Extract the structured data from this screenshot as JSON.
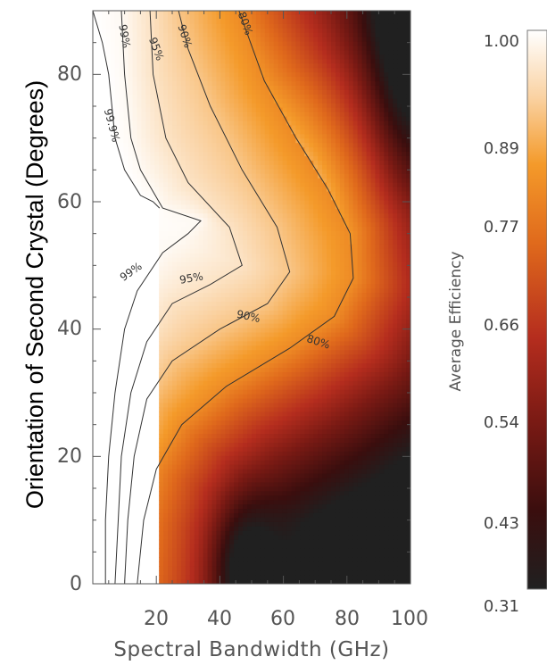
{
  "chart_data": {
    "type": "heatmap",
    "xlabel": "Spectral Bandwidth (GHz)",
    "ylabel": "Orientation of Second Crystal (Degrees)",
    "colorbar_label": "Average Efficiency",
    "xlim": [
      0,
      100
    ],
    "ylim": [
      0,
      90
    ],
    "x_ticks": [
      "20",
      "40",
      "60",
      "80",
      "100"
    ],
    "y_ticks": [
      "0",
      "20",
      "40",
      "60",
      "80"
    ],
    "colorbar_range": [
      0.31,
      1.0
    ],
    "colorbar_ticks": [
      "0.31",
      "0.43",
      "0.54",
      "0.66",
      "0.77",
      "0.89",
      "1.00"
    ],
    "colormap": [
      "#202020",
      "#5a1410",
      "#a8231f",
      "#d9531c",
      "#f39520",
      "#fbd9b0",
      "#ffffff"
    ],
    "contours": [
      {
        "label": "99.9%",
        "level": 0.999,
        "points": [
          [
            0,
            90
          ],
          [
            3,
            85
          ],
          [
            5,
            80
          ],
          [
            6,
            75
          ],
          [
            7,
            70
          ],
          [
            10,
            65
          ],
          [
            15,
            61
          ],
          [
            19,
            60
          ],
          [
            21,
            59
          ]
        ]
      },
      {
        "label": "99%",
        "level": 0.99,
        "points": [
          [
            4,
            0
          ],
          [
            4,
            10
          ],
          [
            5,
            20
          ],
          [
            7,
            30
          ],
          [
            10,
            40
          ],
          [
            14,
            46
          ],
          [
            22,
            52
          ],
          [
            30,
            55
          ],
          [
            34,
            57
          ],
          [
            22,
            59
          ],
          [
            15,
            65
          ],
          [
            12,
            70
          ],
          [
            10,
            80
          ],
          [
            9,
            90
          ]
        ]
      },
      {
        "label": "95%",
        "level": 0.95,
        "points": [
          [
            7,
            0
          ],
          [
            8,
            10
          ],
          [
            9,
            20
          ],
          [
            12,
            30
          ],
          [
            17,
            38
          ],
          [
            25,
            44
          ],
          [
            37,
            47
          ],
          [
            47,
            50
          ],
          [
            43,
            56
          ],
          [
            30,
            63
          ],
          [
            23,
            70
          ],
          [
            19,
            80
          ],
          [
            18,
            90
          ]
        ]
      },
      {
        "label": "90%",
        "level": 0.9,
        "points": [
          [
            10,
            0
          ],
          [
            11,
            10
          ],
          [
            13,
            20
          ],
          [
            17,
            29
          ],
          [
            25,
            35
          ],
          [
            40,
            40
          ],
          [
            55,
            44
          ],
          [
            62,
            49
          ],
          [
            58,
            56
          ],
          [
            47,
            65
          ],
          [
            37,
            75
          ],
          [
            30,
            84
          ],
          [
            27,
            90
          ]
        ]
      },
      {
        "label": "80%",
        "level": 0.8,
        "points": [
          [
            14,
            0
          ],
          [
            16,
            10
          ],
          [
            20,
            18
          ],
          [
            28,
            25
          ],
          [
            42,
            31
          ],
          [
            62,
            37
          ],
          [
            76,
            42
          ],
          [
            82,
            48
          ],
          [
            81,
            55
          ],
          [
            74,
            62
          ],
          [
            64,
            70
          ],
          [
            54,
            79
          ],
          [
            46,
            90
          ]
        ]
      }
    ]
  }
}
